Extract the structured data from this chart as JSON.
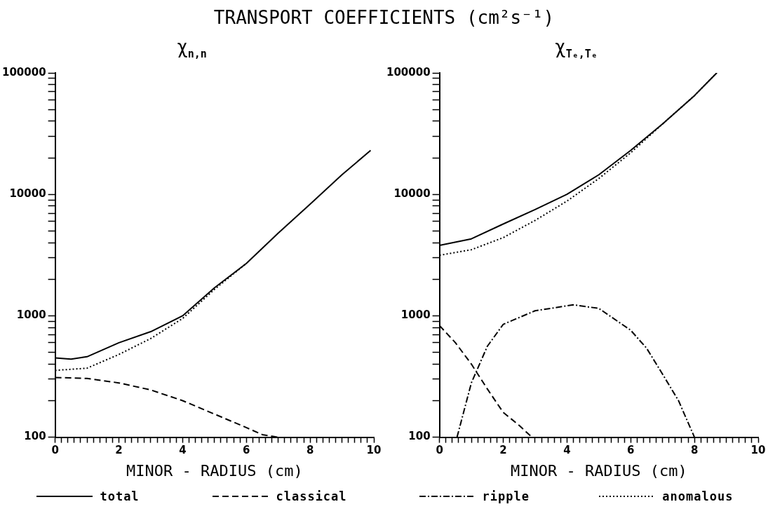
{
  "chart_data": [
    {
      "type": "line",
      "title": "TRANSPORT COEFFICIENTS (cm²s⁻¹)",
      "subtitle": "χ$_{n,n}$",
      "xlabel": "MINOR - RADIUS (cm)",
      "log": true,
      "grid": false,
      "legend": "bottom",
      "marker": "none",
      "xlim": [
        0,
        10
      ],
      "xticks": [
        0,
        {
          "value": 0.2,
          "label": null
        },
        {
          "value": 0.4,
          "label": null
        },
        {
          "value": 0.6,
          "label": null
        },
        {
          "value": 0.8,
          "label": null
        },
        {
          "value": 1,
          "label": null
        },
        {
          "value": 1.2,
          "label": null
        },
        {
          "value": 1.4,
          "label": null
        },
        {
          "value": 1.6,
          "label": null
        },
        {
          "value": 1.8,
          "label": null
        },
        2,
        {
          "value": 2.2,
          "label": null
        },
        {
          "value": 2.4,
          "label": null
        },
        {
          "value": 2.6,
          "label": null
        },
        {
          "value": 2.8,
          "label": null
        },
        {
          "value": 3,
          "label": null
        },
        {
          "value": 3.2,
          "label": null
        },
        {
          "value": 3.4,
          "label": null
        },
        {
          "value": 3.6,
          "label": null
        },
        {
          "value": 3.8,
          "label": null
        },
        4,
        {
          "value": 4.2,
          "label": null
        },
        {
          "value": 4.4,
          "label": null
        },
        {
          "value": 4.6,
          "label": null
        },
        {
          "value": 4.8,
          "label": null
        },
        {
          "value": 5,
          "label": null
        },
        {
          "value": 5.2,
          "label": null
        },
        {
          "value": 5.4,
          "label": null
        },
        {
          "value": 5.6,
          "label": null
        },
        {
          "value": 5.8,
          "label": null
        },
        6,
        {
          "value": 6.2,
          "label": null
        },
        {
          "value": 6.4,
          "label": null
        },
        {
          "value": 6.6,
          "label": null
        },
        {
          "value": 6.8,
          "label": null
        },
        {
          "value": 7,
          "label": null
        },
        {
          "value": 7.2,
          "label": null
        },
        {
          "value": 7.4,
          "label": null
        },
        {
          "value": 7.6,
          "label": null
        },
        {
          "value": 7.8,
          "label": null
        },
        8,
        {
          "value": 8.2,
          "label": null
        },
        {
          "value": 8.4,
          "label": null
        },
        {
          "value": 8.6,
          "label": null
        },
        {
          "value": 8.8,
          "label": null
        },
        {
          "value": 9,
          "label": null
        },
        {
          "value": 9.2,
          "label": null
        },
        {
          "value": 9.4,
          "label": null
        },
        {
          "value": 9.6,
          "label": null
        },
        {
          "value": 9.8,
          "label": null
        },
        10
      ],
      "ylim": [
        100,
        100000
      ],
      "yticks": [
        100,
        {
          "value": 200,
          "label": null
        },
        {
          "value": 300,
          "label": null
        },
        {
          "value": 400,
          "label": null
        },
        {
          "value": 500,
          "label": null
        },
        {
          "value": 600,
          "label": null
        },
        {
          "value": 700,
          "label": null
        },
        {
          "value": 800,
          "label": null
        },
        {
          "value": 900,
          "label": null
        },
        1000,
        {
          "value": 2000,
          "label": null
        },
        {
          "value": 3000,
          "label": null
        },
        {
          "value": 4000,
          "label": null
        },
        {
          "value": 5000,
          "label": null
        },
        {
          "value": 6000,
          "label": null
        },
        {
          "value": 7000,
          "label": null
        },
        {
          "value": 8000,
          "label": null
        },
        {
          "value": 9000,
          "label": null
        },
        10000,
        {
          "value": 20000,
          "label": null
        },
        {
          "value": 30000,
          "label": null
        },
        {
          "value": 40000,
          "label": null
        },
        {
          "value": 50000,
          "label": null
        },
        {
          "value": 60000,
          "label": null
        },
        {
          "value": 70000,
          "label": null
        },
        {
          "value": 80000,
          "label": null
        },
        {
          "value": 90000,
          "label": null
        },
        100000
      ],
      "series": [
        {
          "name": "total",
          "color": "#000000",
          "line_style": "solid",
          "x": [
            0,
            0.5,
            1,
            2,
            3,
            4,
            5,
            6,
            7,
            8,
            9,
            9.9
          ],
          "values": [
            450,
            440,
            460,
            600,
            740,
            1000,
            1700,
            2700,
            4800,
            8300,
            14500,
            23000
          ]
        },
        {
          "name": "classical",
          "color": "#000000",
          "line_style": "dashed",
          "x": [
            0,
            1,
            2,
            3,
            4,
            5,
            6,
            6.5,
            7
          ],
          "values": [
            310,
            305,
            280,
            245,
            200,
            155,
            120,
            105,
            100
          ]
        },
        {
          "color": "#000000",
          "line_style": "dotted",
          "x": [
            0,
            1,
            2,
            3,
            4,
            5,
            6
          ],
          "values": [
            355,
            370,
            480,
            650,
            950,
            1650,
            2700
          ]
        }
      ]
    },
    {
      "type": "line",
      "subtitle": "χ$_{Tₑ,Tₑ}$",
      "xlabel": "MINOR - RADIUS (cm)",
      "log": true,
      "grid": false,
      "legend": "bottom",
      "marker": "none",
      "xlim": [
        0,
        10
      ],
      "xticks": [
        0,
        {
          "value": 0.2,
          "label": null
        },
        {
          "value": 0.4,
          "label": null
        },
        {
          "value": 0.6,
          "label": null
        },
        {
          "value": 0.8,
          "label": null
        },
        {
          "value": 1,
          "label": null
        },
        {
          "value": 1.2,
          "label": null
        },
        {
          "value": 1.4,
          "label": null
        },
        {
          "value": 1.6,
          "label": null
        },
        {
          "value": 1.8,
          "label": null
        },
        2,
        {
          "value": 2.2,
          "label": null
        },
        {
          "value": 2.4,
          "label": null
        },
        {
          "value": 2.6,
          "label": null
        },
        {
          "value": 2.8,
          "label": null
        },
        {
          "value": 3,
          "label": null
        },
        {
          "value": 3.2,
          "label": null
        },
        {
          "value": 3.4,
          "label": null
        },
        {
          "value": 3.6,
          "label": null
        },
        {
          "value": 3.8,
          "label": null
        },
        4,
        {
          "value": 4.2,
          "label": null
        },
        {
          "value": 4.4,
          "label": null
        },
        {
          "value": 4.6,
          "label": null
        },
        {
          "value": 4.8,
          "label": null
        },
        {
          "value": 5,
          "label": null
        },
        {
          "value": 5.2,
          "label": null
        },
        {
          "value": 5.4,
          "label": null
        },
        {
          "value": 5.6,
          "label": null
        },
        {
          "value": 5.8,
          "label": null
        },
        6,
        {
          "value": 6.2,
          "label": null
        },
        {
          "value": 6.4,
          "label": null
        },
        {
          "value": 6.6,
          "label": null
        },
        {
          "value": 6.8,
          "label": null
        },
        {
          "value": 7,
          "label": null
        },
        {
          "value": 7.2,
          "label": null
        },
        {
          "value": 7.4,
          "label": null
        },
        {
          "value": 7.6,
          "label": null
        },
        {
          "value": 7.8,
          "label": null
        },
        8,
        {
          "value": 8.2,
          "label": null
        },
        {
          "value": 8.4,
          "label": null
        },
        {
          "value": 8.6,
          "label": null
        },
        {
          "value": 8.8,
          "label": null
        },
        {
          "value": 9,
          "label": null
        },
        {
          "value": 9.2,
          "label": null
        },
        {
          "value": 9.4,
          "label": null
        },
        {
          "value": 9.6,
          "label": null
        },
        {
          "value": 9.8,
          "label": null
        },
        10
      ],
      "ylim": [
        100,
        100000
      ],
      "yticks": [
        100,
        {
          "value": 200,
          "label": null
        },
        {
          "value": 300,
          "label": null
        },
        {
          "value": 400,
          "label": null
        },
        {
          "value": 500,
          "label": null
        },
        {
          "value": 600,
          "label": null
        },
        {
          "value": 700,
          "label": null
        },
        {
          "value": 800,
          "label": null
        },
        {
          "value": 900,
          "label": null
        },
        1000,
        {
          "value": 2000,
          "label": null
        },
        {
          "value": 3000,
          "label": null
        },
        {
          "value": 4000,
          "label": null
        },
        {
          "value": 5000,
          "label": null
        },
        {
          "value": 6000,
          "label": null
        },
        {
          "value": 7000,
          "label": null
        },
        {
          "value": 8000,
          "label": null
        },
        {
          "value": 9000,
          "label": null
        },
        10000,
        {
          "value": 20000,
          "label": null
        },
        {
          "value": 30000,
          "label": null
        },
        {
          "value": 40000,
          "label": null
        },
        {
          "value": 50000,
          "label": null
        },
        {
          "value": 60000,
          "label": null
        },
        {
          "value": 70000,
          "label": null
        },
        {
          "value": 80000,
          "label": null
        },
        {
          "value": 90000,
          "label": null
        },
        100000
      ],
      "series": [
        {
          "color": "#000000",
          "line_style": "solid",
          "x": [
            0,
            1,
            2,
            3,
            4,
            5,
            6,
            7,
            8,
            8.7
          ],
          "values": [
            3800,
            4300,
            5700,
            7500,
            10000,
            14500,
            23000,
            38000,
            65000,
            100000
          ]
        },
        {
          "color": "#000000",
          "line_style": "dashed",
          "x": [
            0,
            0.5,
            1,
            1.5,
            2,
            2.5,
            2.9
          ],
          "values": [
            830,
            600,
            400,
            250,
            160,
            125,
            100
          ]
        },
        {
          "name": "ripple",
          "color": "#000000",
          "line_style": "dashdot",
          "x": [
            0.55,
            1,
            1.5,
            2,
            3,
            4.2,
            5,
            6,
            6.5,
            7,
            7.5,
            8
          ],
          "values": [
            100,
            280,
            560,
            850,
            1100,
            1230,
            1150,
            760,
            540,
            330,
            200,
            100
          ]
        },
        {
          "name": "anomalous",
          "color": "#000000",
          "line_style": "dotted",
          "x": [
            0,
            1,
            2,
            3,
            4,
            5,
            6,
            7,
            8,
            8.7
          ],
          "values": [
            3150,
            3500,
            4400,
            6100,
            8800,
            13500,
            22000,
            38000,
            65000,
            100000
          ]
        }
      ]
    }
  ]
}
